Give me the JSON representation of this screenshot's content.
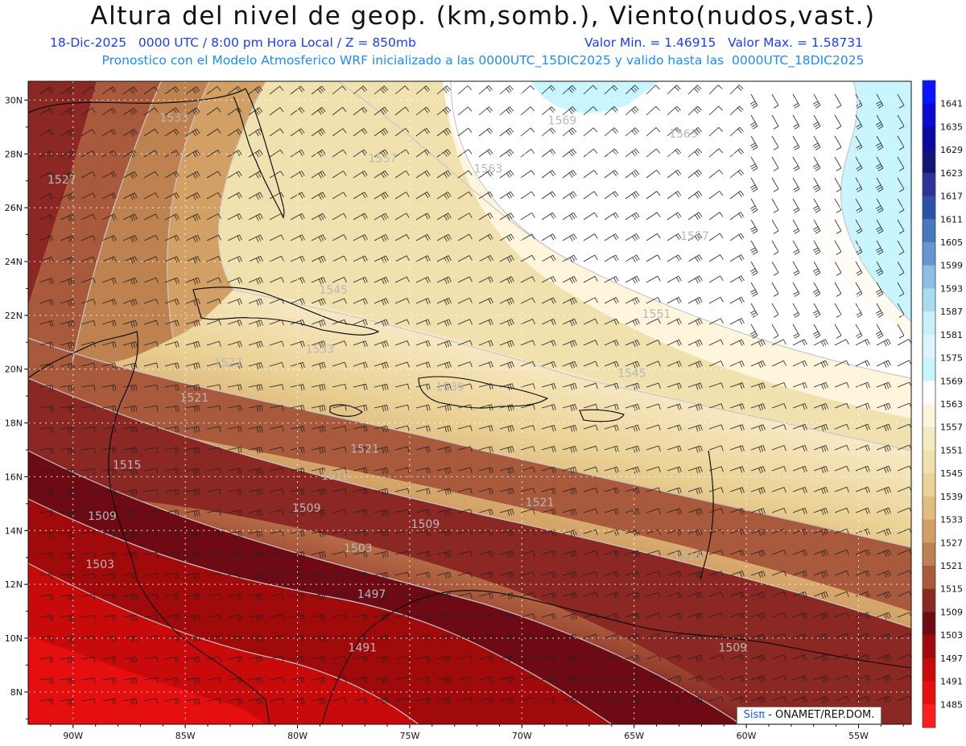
{
  "title": "Altura del nivel de geop. (km,somb.), Viento(nudos,vast.)",
  "subtitle_left": "18-Dic-2025   0000 UTC / 8:00 pm Hora Local / Z = 850mb",
  "subtitle_right": "Valor Min. = 1.46915   Valor Max. = 1.58731",
  "subtitle2": "Pronostico con el Modelo Atmosferico WRF inicializado a las 0000UTC_15DIC2025 y valido hasta las  0000UTC_18DIC2025",
  "credit": {
    "brand": "Sisπ",
    "text": " - ONAMET/REP.DOM."
  },
  "lat_labels": [
    {
      "text": "30N",
      "value": 30
    },
    {
      "text": "28N",
      "value": 28
    },
    {
      "text": "26N",
      "value": 26
    },
    {
      "text": "24N",
      "value": 24
    },
    {
      "text": "22N",
      "value": 22
    },
    {
      "text": "20N",
      "value": 20
    },
    {
      "text": "18N",
      "value": 18
    },
    {
      "text": "16N",
      "value": 16
    },
    {
      "text": "14N",
      "value": 14
    },
    {
      "text": "12N",
      "value": 12
    },
    {
      "text": "10N",
      "value": 10
    },
    {
      "text": "8N",
      "value": 8
    }
  ],
  "lon_labels": [
    {
      "text": "90W",
      "value": -90
    },
    {
      "text": "85W",
      "value": -85
    },
    {
      "text": "80W",
      "value": -80
    },
    {
      "text": "75W",
      "value": -75
    },
    {
      "text": "70W",
      "value": -70
    },
    {
      "text": "65W",
      "value": -65
    },
    {
      "text": "60W",
      "value": -60
    },
    {
      "text": "55W",
      "value": -55
    }
  ],
  "legend": [
    {
      "label": "1641",
      "color": "#0a14ff"
    },
    {
      "label": "1635",
      "color": "#0a0ad2"
    },
    {
      "label": "1629",
      "color": "#0a0aa0"
    },
    {
      "label": "1623",
      "color": "#141478"
    },
    {
      "label": "1617",
      "color": "#2d3296"
    },
    {
      "label": "1611",
      "color": "#2d50aa"
    },
    {
      "label": "1605",
      "color": "#4678be"
    },
    {
      "label": "1599",
      "color": "#6496d2"
    },
    {
      "label": "1593",
      "color": "#8cbee6"
    },
    {
      "label": "1587",
      "color": "#aadcf0"
    },
    {
      "label": "1581",
      "color": "#c8f0fa"
    },
    {
      "label": "1575",
      "color": "#dcf5ff"
    },
    {
      "label": "1569",
      "color": "#c8f5ff"
    },
    {
      "label": "1563",
      "color": "#ffffff"
    },
    {
      "label": "1557",
      "color": "#fff5dc"
    },
    {
      "label": "1551",
      "color": "#f5ebc3"
    },
    {
      "label": "1545",
      "color": "#f0e1af"
    },
    {
      "label": "1539",
      "color": "#ebd296"
    },
    {
      "label": "1533",
      "color": "#e1be7d"
    },
    {
      "label": "1527",
      "color": "#d2a064"
    },
    {
      "label": "1521",
      "color": "#be8250"
    },
    {
      "label": "1515",
      "color": "#aa5a3c"
    },
    {
      "label": "1509",
      "color": "#8c2823"
    },
    {
      "label": "1503",
      "color": "#6e0a14"
    },
    {
      "label": "1497",
      "color": "#a00a0a"
    },
    {
      "label": "1491",
      "color": "#c80a0a"
    },
    {
      "label": "1485",
      "color": "#e60f0f"
    },
    {
      "label": "",
      "color": "#ff1e1e"
    }
  ],
  "contour_labels": [
    {
      "text": "1533",
      "lon": -85.5,
      "lat": 29.2
    },
    {
      "text": "1527",
      "lon": -90.5,
      "lat": 26.9
    },
    {
      "text": "1557",
      "lon": -76.2,
      "lat": 27.7
    },
    {
      "text": "1563",
      "lon": -71.5,
      "lat": 27.3
    },
    {
      "text": "1569",
      "lon": -68.2,
      "lat": 29.1
    },
    {
      "text": "1563",
      "lon": -62.8,
      "lat": 28.6
    },
    {
      "text": "1557",
      "lon": -62.3,
      "lat": 24.8
    },
    {
      "text": "1545",
      "lon": -78.4,
      "lat": 22.8
    },
    {
      "text": "1551",
      "lon": -64.0,
      "lat": 21.9
    },
    {
      "text": "1545",
      "lon": -65.1,
      "lat": 19.7
    },
    {
      "text": "1539",
      "lon": -73.2,
      "lat": 19.2
    },
    {
      "text": "1533",
      "lon": -79.0,
      "lat": 20.6
    },
    {
      "text": "1527",
      "lon": -83.1,
      "lat": 20.1
    },
    {
      "text": "1521",
      "lon": -84.6,
      "lat": 18.8
    },
    {
      "text": "1521",
      "lon": -77.0,
      "lat": 16.9
    },
    {
      "text": "1521",
      "lon": -69.2,
      "lat": 14.9
    },
    {
      "text": "1515",
      "lon": -87.6,
      "lat": 16.3
    },
    {
      "text": "1515",
      "lon": -78.3,
      "lat": 15.9
    },
    {
      "text": "1515",
      "lon": -62.6,
      "lat": 12.9
    },
    {
      "text": "1509",
      "lon": -88.7,
      "lat": 14.4
    },
    {
      "text": "1509",
      "lon": -79.6,
      "lat": 14.7
    },
    {
      "text": "1509",
      "lon": -74.3,
      "lat": 14.1
    },
    {
      "text": "1509",
      "lon": -60.6,
      "lat": 9.5
    },
    {
      "text": "1503",
      "lon": -77.3,
      "lat": 13.2
    },
    {
      "text": "1503",
      "lon": -88.8,
      "lat": 12.6
    },
    {
      "text": "1497",
      "lon": -76.7,
      "lat": 11.5
    },
    {
      "text": "1491",
      "lon": -77.1,
      "lat": 9.5
    }
  ],
  "colors": {
    "ocean_cold": "#c8f5ff",
    "warm_max": "#ff1e1e",
    "coast": "#000000",
    "barb": "#222222",
    "contour": "#c8c8c8"
  }
}
